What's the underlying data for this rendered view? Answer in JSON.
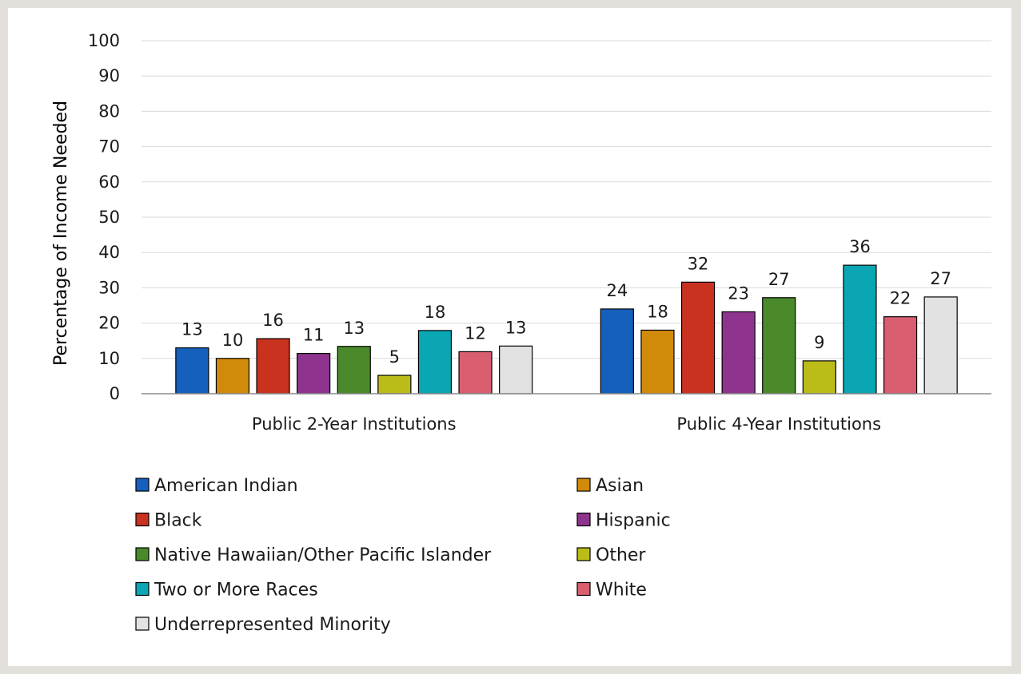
{
  "chart_data": {
    "type": "bar",
    "ylabel": "Percentage of Income Needed",
    "ylim": [
      0,
      100
    ],
    "yticks": [
      0,
      10,
      20,
      30,
      40,
      50,
      60,
      70,
      80,
      90,
      100
    ],
    "grid": true,
    "legend_position": "bottom",
    "categories": [
      "Public 2-Year Institutions",
      "Public 4-Year Institutions"
    ],
    "series": [
      {
        "name": "American Indian",
        "color": "#1560bd",
        "values": [
          13,
          24
        ],
        "value_labels": [
          "13",
          "24"
        ]
      },
      {
        "name": "Asian",
        "color": "#d18a0a",
        "values": [
          10,
          18
        ],
        "value_labels": [
          "10",
          "18"
        ]
      },
      {
        "name": "Black",
        "color": "#c8321e",
        "values": [
          15.6,
          31.6
        ],
        "value_labels": [
          "16",
          "32"
        ]
      },
      {
        "name": "Hispanic",
        "color": "#8e348f",
        "values": [
          11.4,
          23.2
        ],
        "value_labels": [
          "11",
          "23"
        ]
      },
      {
        "name": "Native Hawaiian/Other Pacific Islander",
        "color": "#4a8a2a",
        "values": [
          13.4,
          27.2
        ],
        "value_labels": [
          "13",
          "27"
        ]
      },
      {
        "name": "Other",
        "color": "#bcbc18",
        "values": [
          5.2,
          9.3
        ],
        "value_labels": [
          "5",
          "9"
        ]
      },
      {
        "name": "Two or More Races",
        "color": "#0aa6b4",
        "values": [
          17.9,
          36.4
        ],
        "value_labels": [
          "18",
          "36"
        ]
      },
      {
        "name": "White",
        "color": "#d95f70",
        "values": [
          11.9,
          21.8
        ],
        "value_labels": [
          "12",
          "22"
        ]
      },
      {
        "name": "Underrepresented Minority",
        "color": "#e2e2e2",
        "values": [
          13.5,
          27.4
        ],
        "value_labels": [
          "13",
          "27"
        ]
      }
    ]
  }
}
